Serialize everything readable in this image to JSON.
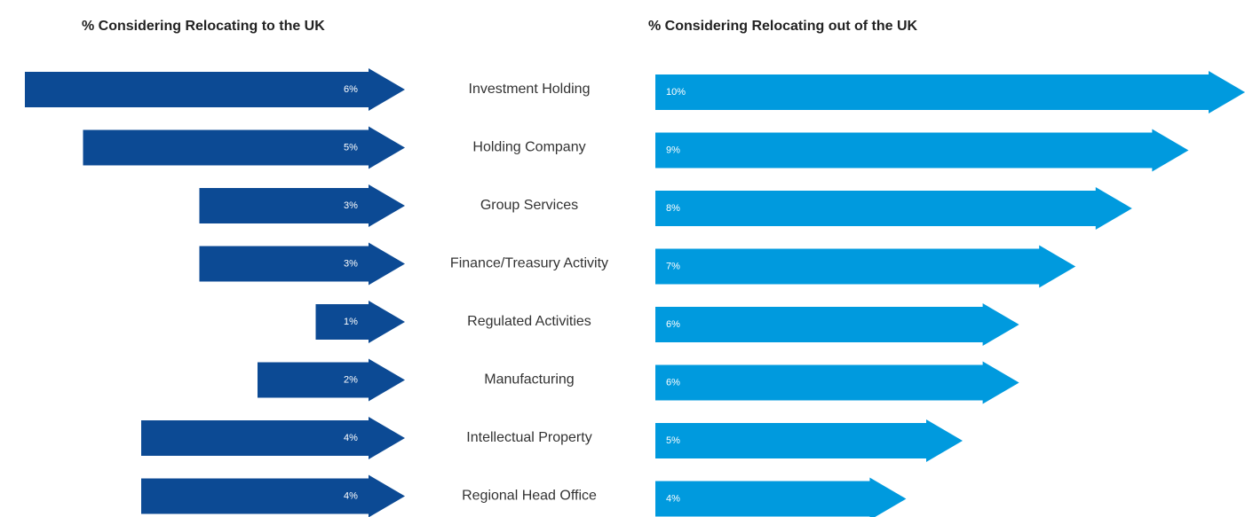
{
  "chart_data": {
    "type": "butterfly_arrow",
    "categories": [
      "Investment Holding",
      "Holding Company",
      "Group Services",
      "Finance/Treasury Activity",
      "Regulated Activities",
      "Manufacturing",
      "Intellectual Property",
      "Regional Head Office"
    ],
    "series": [
      {
        "name": "% Considering Relocating to the UK",
        "color": "#0c4a94",
        "values": [
          6,
          5,
          3,
          3,
          1,
          2,
          4,
          4
        ],
        "value_labels": [
          "6%",
          "5%",
          "3%",
          "3%",
          "1%",
          "2%",
          "4%",
          "4%"
        ]
      },
      {
        "name": "% Considering Relocating out of  the UK",
        "color": "#009ade",
        "values": [
          10,
          9,
          8,
          7,
          6,
          6,
          5,
          4
        ],
        "value_labels": [
          "10%",
          "9%",
          "8%",
          "7%",
          "6%",
          "6%",
          "5%",
          "4%"
        ]
      }
    ]
  }
}
